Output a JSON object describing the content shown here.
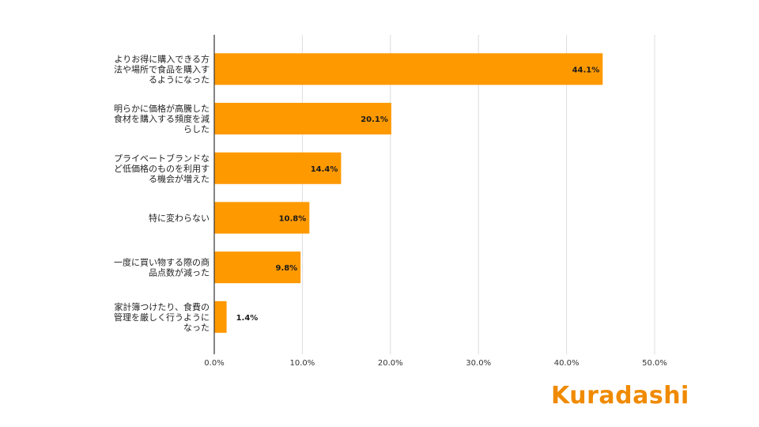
{
  "chart_data": {
    "type": "bar",
    "orientation": "horizontal",
    "categories": [
      "よりお得に購入できる方法や場所で食品を購入するようになった",
      "明らかに価格が高騰した食材を購入する頻度を減らした",
      "プライベートブランドなど低価格のものを利用する機会が増えた",
      "特に変わらない",
      "一度に買い物する際の商品点数が減った",
      "家計簿つけたり、食費の管理を厳しく行うようになった"
    ],
    "category_lines": [
      [
        "よりお得に購入できる方",
        "法や場所で食品を購入す",
        "るようになった"
      ],
      [
        "明らかに価格が高騰した",
        "食材を購入する頻度を減",
        "らした"
      ],
      [
        "プライベートブランドな",
        "ど低価格のものを利用す",
        "る機会が増えた"
      ],
      [
        "特に変わらない"
      ],
      [
        "一度に買い物する際の商",
        "品点数が減った"
      ],
      [
        "家計簿つけたり、食費の",
        "管理を厳しく行うように",
        "なった"
      ]
    ],
    "values": [
      44.1,
      20.1,
      14.4,
      10.8,
      9.8,
      1.4
    ],
    "data_labels": [
      "44.1%",
      "20.1%",
      "14.4%",
      "10.8%",
      "9.8%",
      "1.4%"
    ],
    "xlim": [
      0,
      50
    ],
    "x_ticks": [
      "0.0%",
      "10.0%",
      "20.0%",
      "30.0%",
      "40.0%",
      "50.0%"
    ],
    "grid": true,
    "bar_color": "#ff9900",
    "title": "",
    "xlabel": "",
    "ylabel": ""
  },
  "logo": {
    "text": "Kuradashi",
    "color": "#f08a00"
  }
}
